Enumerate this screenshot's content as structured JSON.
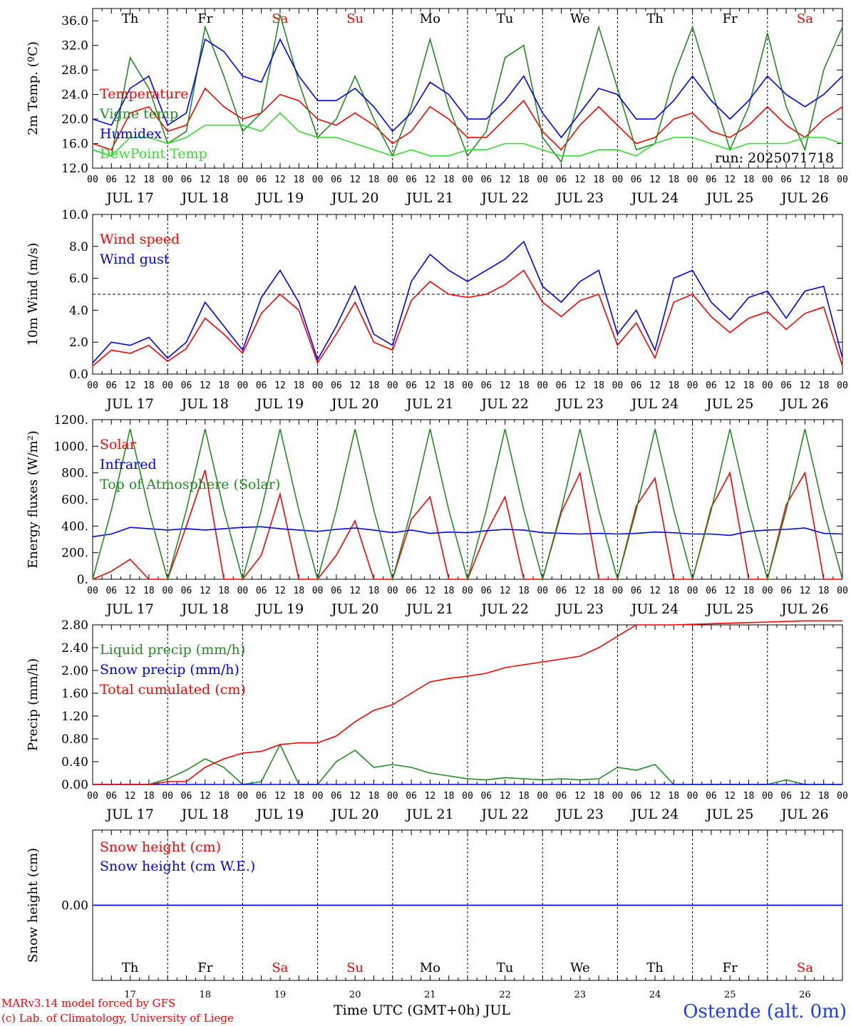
{
  "days": [
    "JUL 17",
    "JUL 18",
    "JUL 19",
    "JUL 20",
    "JUL 21",
    "JUL 22",
    "JUL 23",
    "JUL 24",
    "JUL 25",
    "JUL 26"
  ],
  "day_numbers": [
    "17",
    "18",
    "19",
    "20",
    "21",
    "22",
    "23",
    "24",
    "25",
    "26"
  ],
  "weekdays": [
    "Th",
    "Fr",
    "Sa",
    "Su",
    "Mo",
    "Tu",
    "We",
    "Th",
    "Fr",
    "Sa"
  ],
  "weekend_flags": [
    false,
    false,
    true,
    true,
    false,
    false,
    false,
    false,
    false,
    true
  ],
  "hour_ticks": [
    "00",
    "06",
    "12",
    "18"
  ],
  "last_tick": "00",
  "colors": {
    "red": "#ff0000",
    "green": "#228b22",
    "blue": "#0000ff",
    "lightgreen": "#33dd33",
    "weekend": "#ff0000",
    "title_blue": "#1a3cff"
  },
  "footer": {
    "credit_line1": "MARv3.14 model forced by GFS",
    "credit_line2": "(c) Lab. of Climatology, University of Liege",
    "axis_title": "Time UTC (GMT+0h) JUL",
    "station": "Ostende (alt. 0m)"
  },
  "chart_data": [
    {
      "type": "line",
      "ylabel": "2m Temp. (ºC)",
      "ylim": [
        12,
        38
      ],
      "yticks": [
        "12.0",
        "16.0",
        "20.0",
        "24.0",
        "28.0",
        "32.0",
        "36.0"
      ],
      "run_label": "run: 2025071718",
      "x_hours": [
        0,
        6,
        12,
        18,
        24,
        30,
        36,
        42,
        48,
        54,
        60,
        66,
        72,
        78,
        84,
        90,
        96,
        102,
        108,
        114,
        120,
        126,
        132,
        138,
        144,
        150,
        156,
        162,
        168,
        174,
        180,
        186,
        192,
        198,
        204,
        210,
        216,
        222,
        228,
        234,
        240
      ],
      "series": [
        {
          "name": "Temperature",
          "color": "red",
          "values": [
            16,
            15,
            21,
            22,
            18,
            19,
            25,
            22,
            20,
            21,
            24,
            23,
            20,
            19,
            21,
            19,
            16,
            18,
            22,
            20,
            17,
            17,
            20,
            23,
            18,
            15,
            19,
            22,
            19,
            16,
            17,
            20,
            21,
            18,
            17,
            19,
            22,
            19,
            17,
            20,
            22
          ]
        },
        {
          "name": "Vigne temp",
          "color": "green",
          "values": [
            15,
            14,
            30,
            25,
            16,
            18,
            35,
            27,
            18,
            21,
            37,
            26,
            17,
            20,
            27,
            20,
            14,
            22,
            33,
            22,
            14,
            18,
            30,
            32,
            17,
            13,
            24,
            35,
            25,
            15,
            16,
            27,
            35,
            25,
            15,
            22,
            34,
            22,
            15,
            28,
            35
          ]
        },
        {
          "name": "Humidex",
          "color": "blue",
          "values": [
            20,
            19,
            25,
            27,
            19,
            21,
            33,
            31,
            27,
            26,
            33,
            27,
            23,
            23,
            25,
            22,
            18,
            21,
            26,
            24,
            20,
            20,
            23,
            27,
            21,
            17,
            21,
            25,
            24,
            20,
            20,
            23,
            27,
            23,
            20,
            23,
            27,
            24,
            22,
            24,
            27
          ]
        },
        {
          "name": "DewPoint Temp",
          "color": "lightgreen",
          "values": [
            15,
            14,
            17,
            17,
            16,
            17,
            19,
            19,
            19,
            18,
            21,
            18,
            17,
            17,
            16,
            15,
            14,
            15,
            14,
            14,
            15,
            15,
            16,
            16,
            15,
            14,
            14,
            15,
            15,
            14,
            16,
            17,
            17,
            16,
            15,
            16,
            16,
            16,
            17,
            17,
            16
          ]
        }
      ]
    },
    {
      "type": "line",
      "ylabel": "10m Wind (m/s)",
      "ylim": [
        0,
        10
      ],
      "yticks": [
        "0.0",
        "2.0",
        "4.0",
        "6.0",
        "8.0",
        "10.0"
      ],
      "reference_line": 5,
      "x_hours": [
        0,
        6,
        12,
        18,
        24,
        30,
        36,
        42,
        48,
        54,
        60,
        66,
        72,
        78,
        84,
        90,
        96,
        102,
        108,
        114,
        120,
        126,
        132,
        138,
        144,
        150,
        156,
        162,
        168,
        174,
        180,
        186,
        192,
        198,
        204,
        210,
        216,
        222,
        228,
        234,
        240
      ],
      "series": [
        {
          "name": "Wind speed",
          "color": "red",
          "values": [
            0.5,
            1.5,
            1.3,
            1.8,
            0.8,
            1.6,
            3.5,
            2.5,
            1.3,
            3.8,
            5.0,
            4.0,
            0.7,
            2.5,
            4.5,
            2.0,
            1.5,
            4.6,
            5.8,
            5.0,
            4.8,
            5.0,
            5.6,
            6.5,
            4.5,
            3.6,
            4.6,
            5.0,
            1.8,
            3.2,
            1.0,
            4.5,
            5.0,
            3.6,
            2.6,
            3.5,
            3.9,
            2.8,
            3.8,
            4.2,
            0.5
          ]
        },
        {
          "name": "Wind gust",
          "color": "blue",
          "values": [
            0.7,
            2.0,
            1.8,
            2.3,
            1.0,
            2.0,
            4.5,
            3.0,
            1.5,
            4.8,
            6.5,
            4.5,
            0.9,
            3.0,
            5.5,
            2.5,
            1.8,
            5.8,
            7.5,
            6.5,
            5.8,
            6.5,
            7.2,
            8.3,
            5.5,
            4.5,
            5.8,
            6.5,
            2.5,
            4.0,
            1.5,
            6.0,
            6.5,
            4.5,
            3.4,
            4.8,
            5.2,
            3.5,
            5.2,
            5.5,
            1.0
          ]
        }
      ]
    },
    {
      "type": "line",
      "ylabel": "Energy fluxes (W/m²)",
      "ylim": [
        0,
        1200
      ],
      "yticks": [
        "0.",
        "200.",
        "400.",
        "600.",
        "800.",
        "1000.",
        "1200."
      ],
      "x_hours": [
        0,
        6,
        12,
        18,
        24,
        30,
        36,
        42,
        48,
        54,
        60,
        66,
        72,
        78,
        84,
        90,
        96,
        102,
        108,
        114,
        120,
        126,
        132,
        138,
        144,
        150,
        156,
        162,
        168,
        174,
        180,
        186,
        192,
        198,
        204,
        210,
        216,
        222,
        228,
        234,
        240
      ],
      "series": [
        {
          "name": "Solar",
          "color": "red",
          "values": [
            0,
            60,
            150,
            0,
            0,
            400,
            820,
            0,
            0,
            180,
            640,
            0,
            0,
            180,
            440,
            0,
            0,
            450,
            620,
            0,
            0,
            350,
            620,
            0,
            0,
            500,
            800,
            0,
            0,
            550,
            760,
            0,
            0,
            540,
            800,
            0,
            0,
            560,
            800,
            0,
            0
          ]
        },
        {
          "name": "Infrared",
          "color": "blue",
          "values": [
            320,
            340,
            390,
            380,
            370,
            380,
            370,
            380,
            390,
            395,
            380,
            370,
            360,
            375,
            385,
            370,
            350,
            370,
            345,
            355,
            350,
            365,
            375,
            370,
            350,
            345,
            340,
            345,
            340,
            345,
            355,
            350,
            340,
            340,
            330,
            360,
            370,
            375,
            385,
            345,
            340
          ]
        },
        {
          "name": "Top of Atmosphere (Solar)",
          "color": "green",
          "values": [
            0,
            520,
            1130,
            520,
            0,
            520,
            1130,
            520,
            0,
            520,
            1130,
            520,
            0,
            520,
            1130,
            520,
            0,
            520,
            1130,
            520,
            0,
            520,
            1130,
            520,
            0,
            520,
            1130,
            520,
            0,
            520,
            1130,
            520,
            0,
            520,
            1130,
            520,
            0,
            520,
            1130,
            520,
            0
          ]
        }
      ]
    },
    {
      "type": "line",
      "ylabel": "Precip (mm/h)",
      "ylim": [
        0,
        2.8
      ],
      "yticks": [
        "0.00",
        "0.40",
        "0.80",
        "1.20",
        "1.60",
        "2.00",
        "2.40",
        "2.80"
      ],
      "x_hours": [
        0,
        6,
        12,
        18,
        24,
        30,
        36,
        42,
        48,
        54,
        60,
        66,
        72,
        78,
        84,
        90,
        96,
        102,
        108,
        114,
        120,
        126,
        132,
        138,
        144,
        150,
        156,
        162,
        168,
        174,
        180,
        186,
        192,
        198,
        204,
        210,
        216,
        222,
        228,
        234,
        240
      ],
      "series": [
        {
          "name": "Liquid precip (mm/h)",
          "color": "green",
          "values": [
            0,
            0,
            0,
            0,
            0.1,
            0.25,
            0.45,
            0.3,
            0,
            0.05,
            0.7,
            0,
            0,
            0.4,
            0.6,
            0.3,
            0.35,
            0.3,
            0.2,
            0.15,
            0.1,
            0.08,
            0.12,
            0.1,
            0.08,
            0.1,
            0.08,
            0.1,
            0.3,
            0.25,
            0.35,
            0,
            0,
            0,
            0,
            0,
            0,
            0.08,
            0,
            0,
            0
          ]
        },
        {
          "name": "Snow precip (mm/h)",
          "color": "blue",
          "values": [
            0,
            0,
            0,
            0,
            0,
            0,
            0,
            0,
            0,
            0,
            0,
            0,
            0,
            0,
            0,
            0,
            0,
            0,
            0,
            0,
            0,
            0,
            0,
            0,
            0,
            0,
            0,
            0,
            0,
            0,
            0,
            0,
            0,
            0,
            0,
            0,
            0,
            0,
            0,
            0,
            0
          ]
        },
        {
          "name": "Total cumulated (cm)",
          "color": "red",
          "values": [
            0,
            0,
            0,
            0,
            0.05,
            0.05,
            0.3,
            0.45,
            0.55,
            0.58,
            0.7,
            0.73,
            0.73,
            0.85,
            1.1,
            1.3,
            1.4,
            1.6,
            1.8,
            1.86,
            1.9,
            1.95,
            2.05,
            2.1,
            2.15,
            2.2,
            2.25,
            2.4,
            2.6,
            2.8,
            2.8,
            2.8,
            2.81,
            2.82,
            2.83,
            2.84,
            2.85,
            2.86,
            2.87,
            2.87,
            2.87
          ]
        }
      ]
    },
    {
      "type": "line",
      "ylabel": "Snow height (cm)",
      "ylim": [
        -1,
        1
      ],
      "yticks": [
        "0.00"
      ],
      "x_hours": [
        0,
        240
      ],
      "series": [
        {
          "name": "Snow height (cm)",
          "color": "red",
          "values": [
            0,
            0
          ]
        },
        {
          "name": "Snow height (cm W.E.)",
          "color": "blue",
          "values": [
            0,
            0
          ]
        }
      ]
    }
  ]
}
